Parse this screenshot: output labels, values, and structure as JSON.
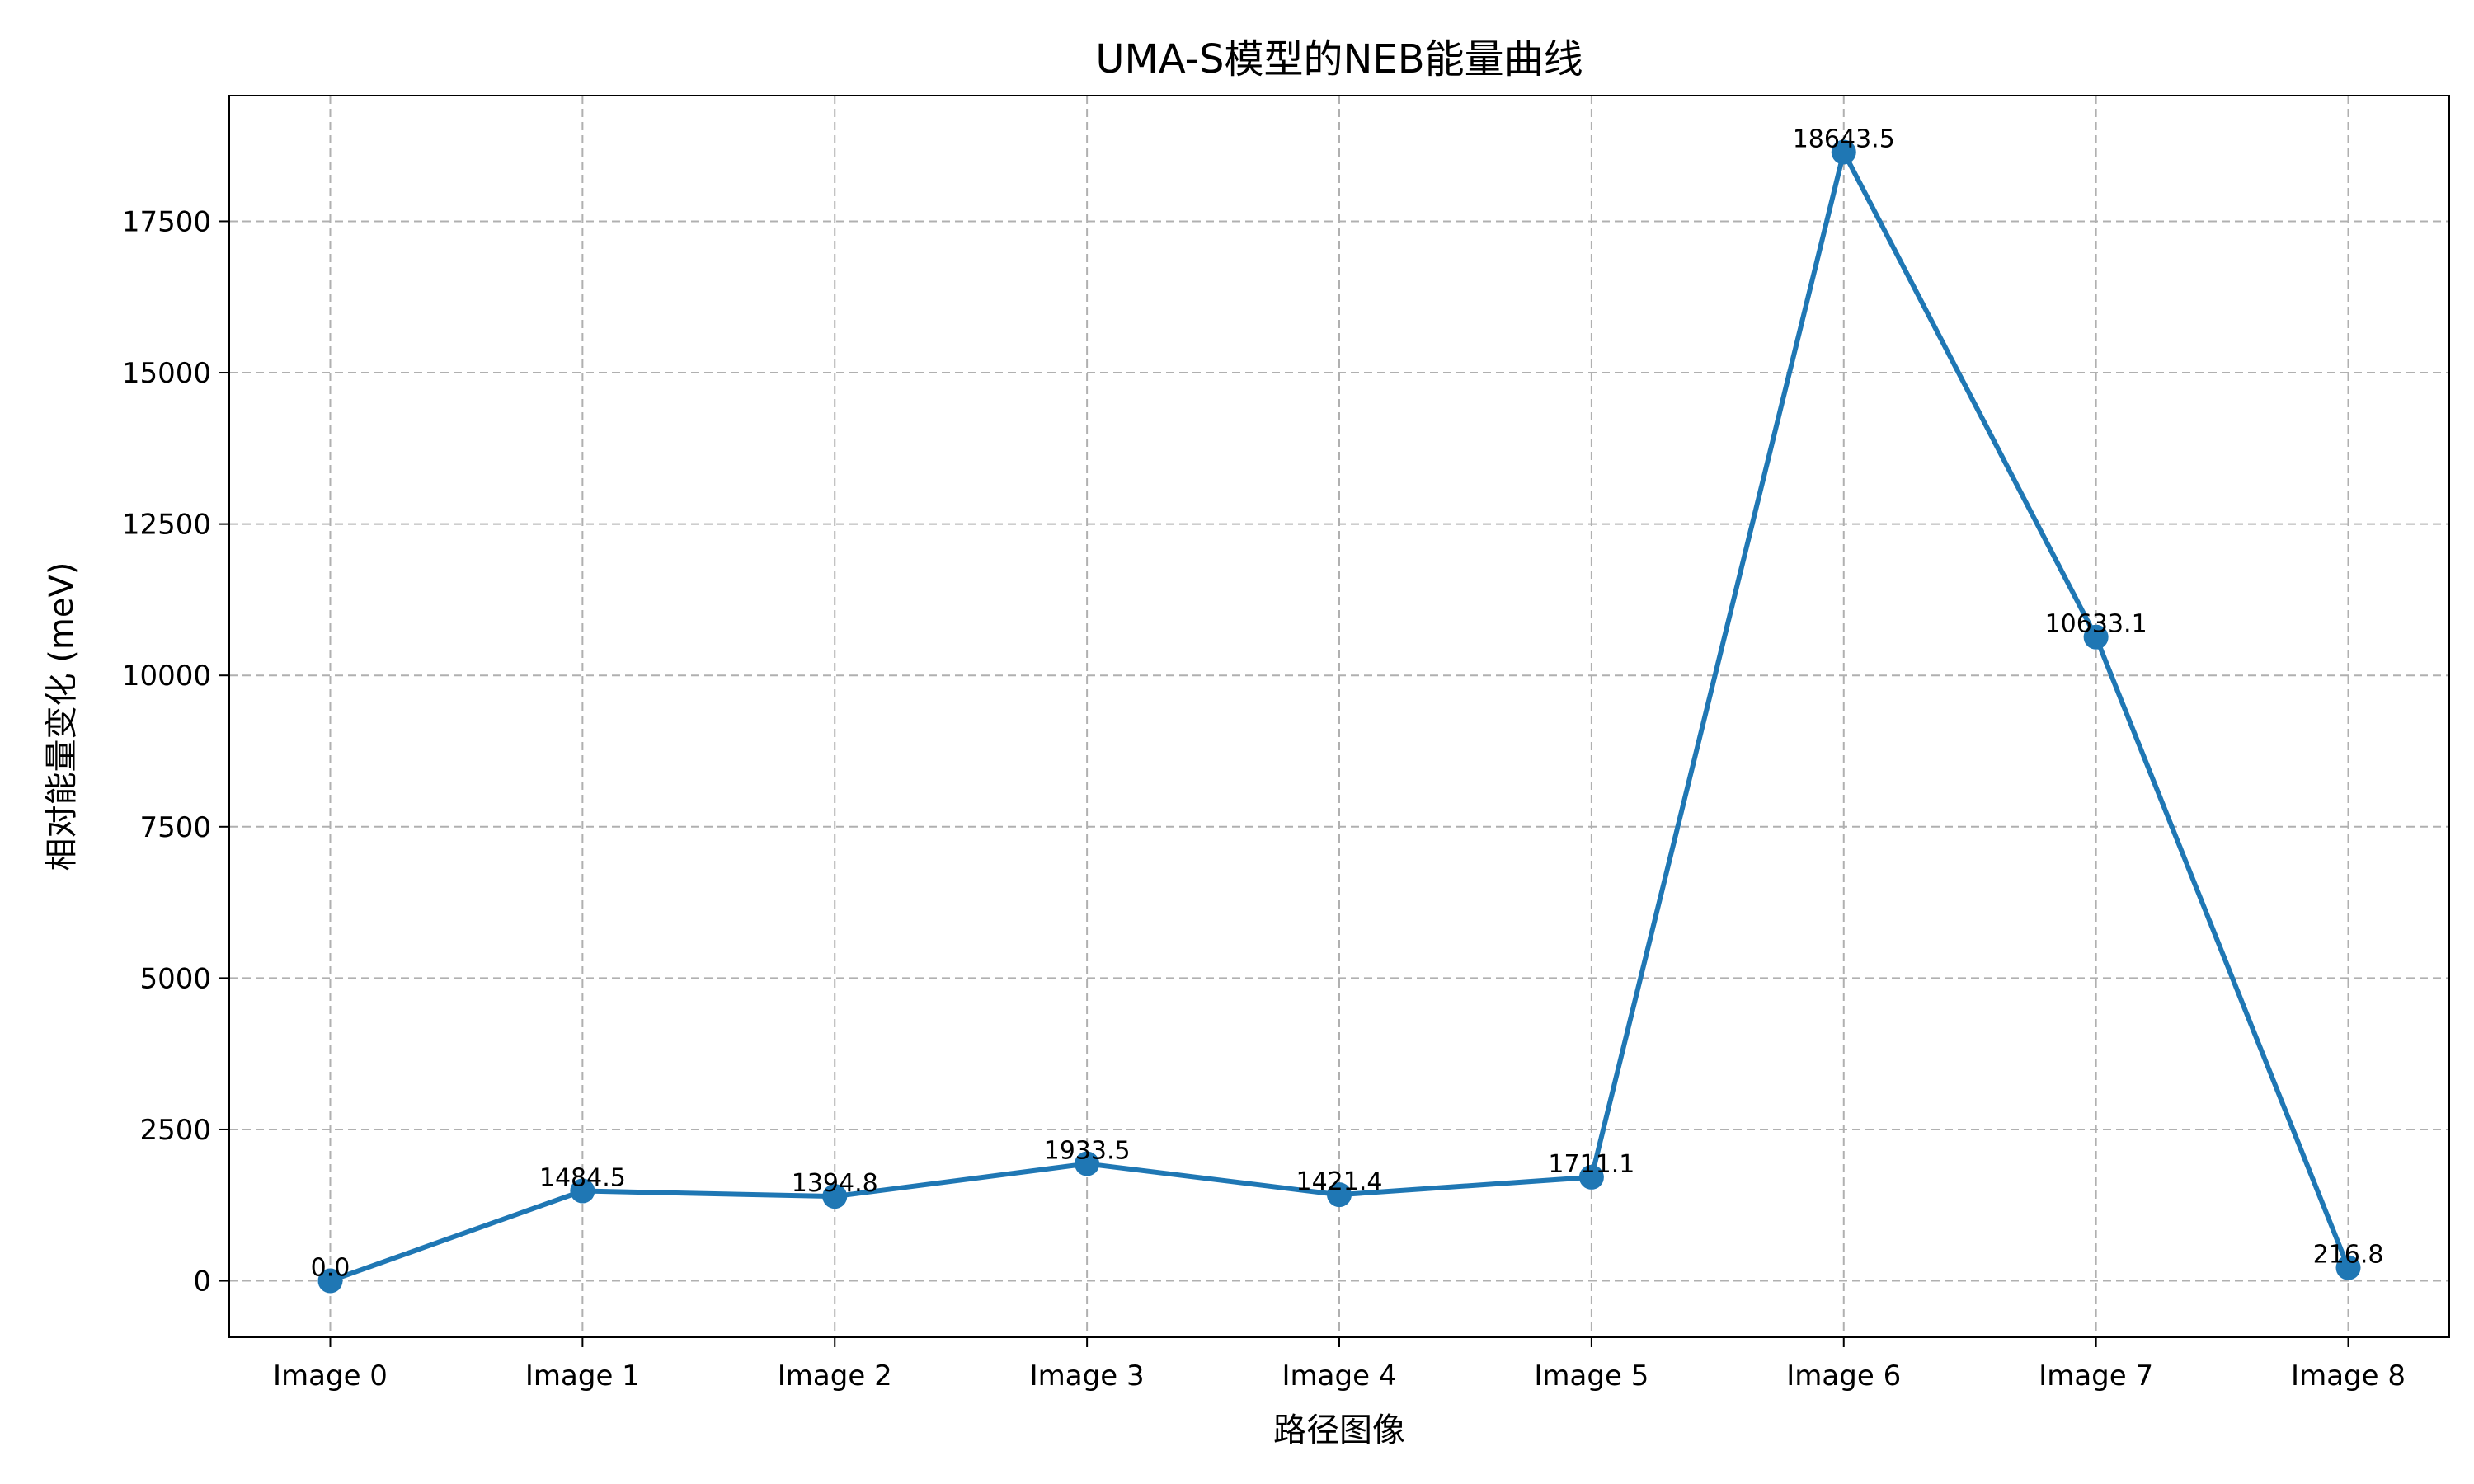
{
  "chart_data": {
    "type": "line",
    "title": "UMA-S模型的NEB能量曲线",
    "xlabel": "路径图像",
    "ylabel": "相对能量变化 (meV)",
    "categories": [
      "Image 0",
      "Image 1",
      "Image 2",
      "Image 3",
      "Image 4",
      "Image 5",
      "Image 6",
      "Image 7",
      "Image 8"
    ],
    "series": [
      {
        "values": [
          0.0,
          1484.5,
          1394.8,
          1933.5,
          1421.4,
          1711.1,
          18643.5,
          10633.1,
          216.8
        ],
        "labels": [
          "0.0",
          "1484.5",
          "1394.8",
          "1933.5",
          "1421.4",
          "1711.1",
          "18643.5",
          "10633.1",
          "216.8"
        ],
        "color": "#1f77b4"
      }
    ],
    "ylim": [
      -932,
      19576
    ],
    "yticks": [
      0,
      2500,
      5000,
      7500,
      10000,
      12500,
      15000,
      17500
    ],
    "ytick_labels": [
      "0",
      "2500",
      "5000",
      "7500",
      "10000",
      "12500",
      "15000",
      "17500"
    ],
    "grid": true,
    "legend": "none"
  }
}
